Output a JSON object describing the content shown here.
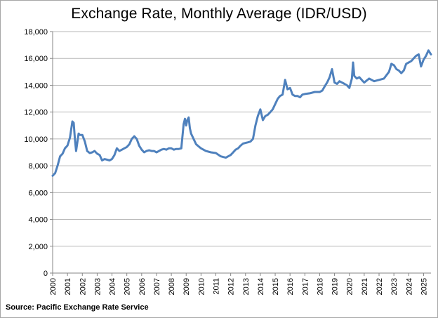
{
  "chart_data": {
    "type": "line",
    "title": "Exchange Rate, Monthly Average (IDR/USD)",
    "xlabel": "",
    "ylabel": "",
    "ylim": [
      0,
      18000
    ],
    "xlim": [
      2000.0,
      2025.5
    ],
    "y_ticks": [
      0,
      2000,
      4000,
      6000,
      8000,
      10000,
      12000,
      14000,
      16000,
      18000
    ],
    "y_tick_labels": [
      "0",
      "2,000",
      "4,000",
      "6,000",
      "8,000",
      "10,000",
      "12,000",
      "14,000",
      "16,000",
      "18,000"
    ],
    "x_ticks": [
      "2000",
      "2001",
      "2002",
      "2003",
      "2004",
      "2005",
      "2006",
      "2007",
      "2008",
      "2009",
      "2010",
      "2011",
      "2012",
      "2013",
      "2014",
      "2015",
      "2016",
      "2017",
      "2018",
      "2019",
      "2020",
      "2021",
      "2022",
      "2023",
      "2024",
      "2025"
    ],
    "grid": true,
    "legend": "none",
    "line_color": "#4f81bd",
    "series": [
      {
        "x": [
          2000.0,
          2000.17,
          2000.33,
          2000.5,
          2000.67,
          2000.83,
          2001.0,
          2001.17,
          2001.33,
          2001.42,
          2001.5,
          2001.58,
          2001.75,
          2001.83,
          2002.0,
          2002.17,
          2002.33,
          2002.5,
          2002.67,
          2002.83,
          2003.0,
          2003.17,
          2003.33,
          2003.5,
          2003.67,
          2003.83,
          2004.0,
          2004.17,
          2004.33,
          2004.5,
          2004.67,
          2004.83,
          2005.0,
          2005.17,
          2005.33,
          2005.5,
          2005.67,
          2005.83,
          2006.0,
          2006.17,
          2006.33,
          2006.5,
          2006.67,
          2006.83,
          2007.0,
          2007.17,
          2007.33,
          2007.5,
          2007.67,
          2007.83,
          2008.0,
          2008.17,
          2008.33,
          2008.5,
          2008.67,
          2008.83,
          2008.92,
          2009.0,
          2009.08,
          2009.17,
          2009.25,
          2009.33,
          2009.5,
          2009.67,
          2009.83,
          2010.0,
          2010.33,
          2010.67,
          2011.0,
          2011.33,
          2011.67,
          2011.83,
          2012.0,
          2012.17,
          2012.33,
          2012.5,
          2012.67,
          2012.83,
          2013.0,
          2013.17,
          2013.33,
          2013.5,
          2013.67,
          2013.83,
          2014.0,
          2014.17,
          2014.33,
          2014.5,
          2014.67,
          2014.83,
          2015.0,
          2015.17,
          2015.33,
          2015.5,
          2015.67,
          2015.83,
          2016.0,
          2016.17,
          2016.33,
          2016.5,
          2016.67,
          2016.83,
          2017.0,
          2017.33,
          2017.67,
          2018.0,
          2018.17,
          2018.33,
          2018.5,
          2018.67,
          2018.83,
          2019.0,
          2019.17,
          2019.33,
          2019.5,
          2019.67,
          2019.83,
          2020.0,
          2020.17,
          2020.25,
          2020.33,
          2020.5,
          2020.67,
          2020.83,
          2021.0,
          2021.33,
          2021.67,
          2022.0,
          2022.33,
          2022.67,
          2022.83,
          2023.0,
          2023.17,
          2023.33,
          2023.5,
          2023.67,
          2023.83,
          2024.0,
          2024.17,
          2024.33,
          2024.5,
          2024.67,
          2024.83,
          2025.0,
          2025.17,
          2025.33,
          2025.5
        ],
        "values": [
          7250,
          7450,
          8000,
          8700,
          8900,
          9300,
          9500,
          10100,
          11300,
          11200,
          10000,
          9100,
          10400,
          10300,
          10300,
          9800,
          9100,
          8950,
          9000,
          9100,
          8900,
          8800,
          8400,
          8500,
          8450,
          8400,
          8500,
          8800,
          9300,
          9100,
          9200,
          9300,
          9400,
          9600,
          10000,
          10200,
          10000,
          9500,
          9200,
          9000,
          9100,
          9150,
          9100,
          9100,
          9000,
          9100,
          9200,
          9250,
          9200,
          9300,
          9300,
          9200,
          9250,
          9250,
          9300,
          11100,
          11500,
          11000,
          11400,
          11600,
          10800,
          10400,
          10000,
          9600,
          9450,
          9300,
          9100,
          9000,
          8950,
          8700,
          8600,
          8700,
          8800,
          9000,
          9200,
          9300,
          9500,
          9650,
          9700,
          9750,
          9800,
          10000,
          11000,
          11700,
          12200,
          11400,
          11700,
          11800,
          12000,
          12200,
          12600,
          13000,
          13200,
          13300,
          14400,
          13700,
          13800,
          13300,
          13200,
          13200,
          13100,
          13300,
          13350,
          13400,
          13500,
          13500,
          13600,
          13900,
          14200,
          14600,
          15200,
          14200,
          14100,
          14300,
          14200,
          14100,
          14000,
          13800,
          14500,
          15700,
          14700,
          14500,
          14600,
          14400,
          14200,
          14500,
          14300,
          14400,
          14500,
          15000,
          15600,
          15500,
          15200,
          15100,
          14900,
          15100,
          15600,
          15700,
          15800,
          16000,
          16200,
          16300,
          15400,
          15900,
          16200,
          16600,
          16300
        ]
      }
    ]
  },
  "source_note": "Source: Pacific Exchange Rate Service"
}
